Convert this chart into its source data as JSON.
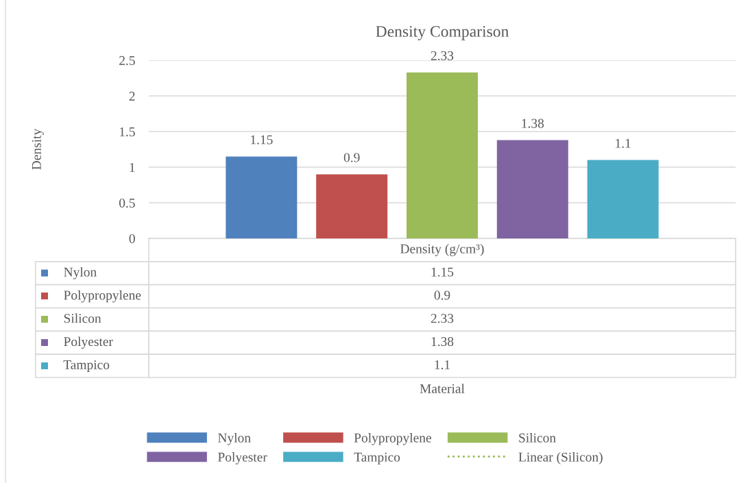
{
  "chart_data": {
    "type": "bar",
    "title": "Density Comparison",
    "annotations": [
      "Density",
      "Material",
      "1.15",
      "0.9",
      "2.33",
      "1.38",
      "1.1"
    ],
    "categories": [
      "Density (g/cm³)"
    ],
    "series": [
      {
        "name": "Nylon",
        "color": "#4f81bd",
        "values": [
          1.15
        ]
      },
      {
        "name": "Polypropylene",
        "color": "#c0504d",
        "values": [
          0.9
        ]
      },
      {
        "name": "Silicon",
        "color": "#9bbb59",
        "values": [
          2.33
        ]
      },
      {
        "name": "Polyester",
        "color": "#8064a2",
        "values": [
          1.38
        ]
      },
      {
        "name": "Tampico",
        "color": "#4bacc6",
        "values": [
          1.1
        ]
      },
      {
        "name": "Linear (Silicon)",
        "type": "line",
        "line_style": "dotted",
        "color": "#9bbb59",
        "values": [
          null
        ]
      }
    ],
    "ylim": [
      0,
      2.5
    ],
    "yticks": [
      0,
      0.5,
      1,
      1.5,
      2,
      2.5
    ],
    "grid": "y",
    "legend": "bottom",
    "data_labels": true
  }
}
